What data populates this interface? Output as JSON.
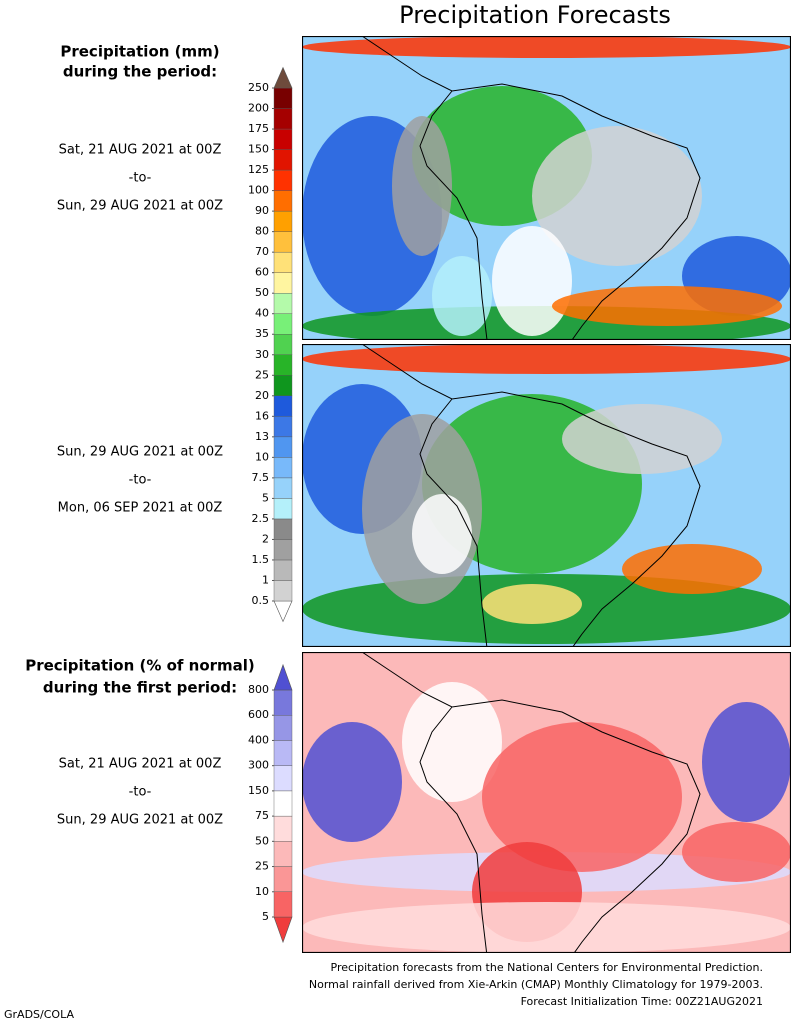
{
  "title": "Precipitation Forecasts",
  "precip_legend": {
    "title_lines": [
      "Precipitation (mm)",
      "during the period:"
    ],
    "ticks": [
      0.5,
      1,
      1.5,
      2,
      2.5,
      5,
      7.5,
      10,
      13,
      16,
      20,
      25,
      30,
      35,
      40,
      50,
      60,
      70,
      80,
      90,
      100,
      125,
      150,
      175,
      200,
      250
    ],
    "colors": [
      "#ffffff",
      "#d2d2d2",
      "#b9b9b9",
      "#a0a0a0",
      "#8a8a8a",
      "#b4f0fa",
      "#96d2fa",
      "#78b9fa",
      "#5096f0",
      "#3c78e6",
      "#1e5adc",
      "#0f961e",
      "#28b428",
      "#50d250",
      "#78f078",
      "#b4faaa",
      "#fff5a0",
      "#ffe178",
      "#ffc03c",
      "#ffa000",
      "#ff6e00",
      "#ff3200",
      "#e11400",
      "#c80000",
      "#a50000",
      "#780000",
      "#6e4b3c"
    ]
  },
  "periods": [
    {
      "start": "Sat, 21 AUG 2021 at 00Z",
      "sep": "-to-",
      "end": "Sun, 29 AUG 2021 at 00Z"
    },
    {
      "start": "Sun, 29 AUG 2021 at 00Z",
      "sep": "-to-",
      "end": "Mon, 06 SEP 2021 at 00Z"
    }
  ],
  "anomaly_legend": {
    "title_lines": [
      "Precipitation (% of normal)",
      "during the first period:"
    ],
    "ticks": [
      5,
      10,
      25,
      50,
      75,
      150,
      300,
      400,
      600,
      800
    ],
    "colors": [
      "#f03c3c",
      "#f86464",
      "#fa9696",
      "#fcb9b9",
      "#ffdcdc",
      "#ffffff",
      "#dcdcff",
      "#b9b9f5",
      "#9696e6",
      "#7878dc",
      "#5050d2"
    ]
  },
  "anomaly_period": {
    "start": "Sat, 21 AUG 2021 at 00Z",
    "sep": "-to-",
    "end": "Sun, 29 AUG 2021 at 00Z"
  },
  "footer": [
    "Precipitation forecasts from the National Centers for Environmental Prediction.",
    "Normal rainfall derived from Xie-Arkin (CMAP) Monthly Climatology for 1979-2003.",
    "Forecast Initialization Time: 00Z21AUG2021"
  ],
  "credit": "GrADS/COLA"
}
